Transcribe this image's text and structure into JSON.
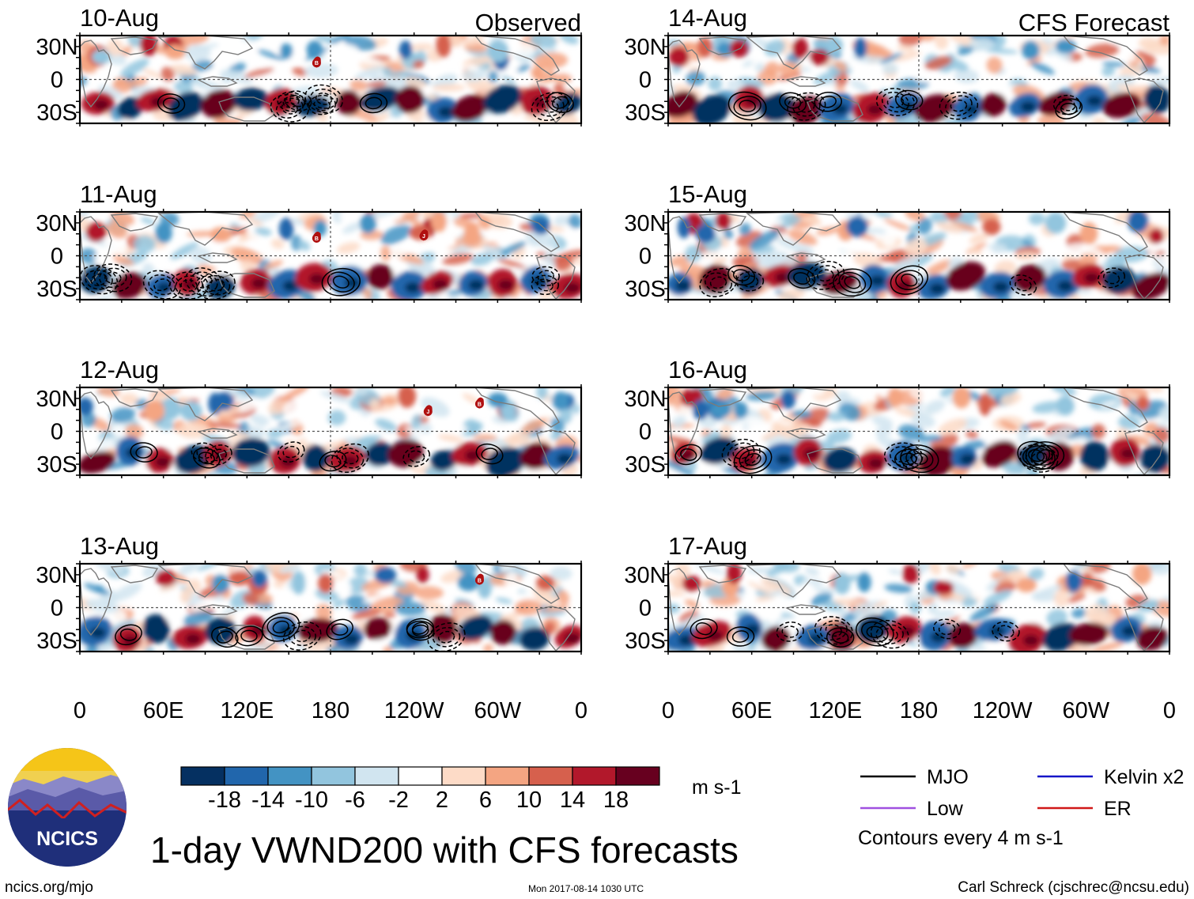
{
  "chart_data": {
    "type": "heatmap",
    "title": "1-day VWND200 with CFS forecasts",
    "units": "m s-1",
    "variable": "VWND200",
    "columns": [
      {
        "label": "Observed",
        "dates": [
          "10-Aug",
          "11-Aug",
          "12-Aug",
          "13-Aug"
        ]
      },
      {
        "label": "CFS Forecast",
        "dates": [
          "14-Aug",
          "15-Aug",
          "16-Aug",
          "17-Aug"
        ]
      }
    ],
    "x_ticks": [
      "0",
      "60E",
      "120E",
      "180",
      "120W",
      "60W",
      "0"
    ],
    "y_ticks": [
      "30N",
      "0",
      "30S"
    ],
    "xlim": [
      0,
      360
    ],
    "ylim": [
      -40,
      40
    ],
    "colorbar": {
      "colors": [
        "#053061",
        "#2166ac",
        "#4393c3",
        "#92c5de",
        "#d1e5f0",
        "#ffffff",
        "#fddbc7",
        "#f4a582",
        "#d6604d",
        "#b2182b",
        "#67001f"
      ],
      "labels": [
        "-18",
        "-14",
        "-10",
        "-6",
        "-2",
        "2",
        "6",
        "10",
        "14",
        "18"
      ],
      "units": "m s-1"
    },
    "contour_legend": [
      {
        "name": "MJO",
        "color": "#000000"
      },
      {
        "name": "Kelvin x2",
        "color": "#1515c8"
      },
      {
        "name": "Low",
        "color": "#a050e0"
      },
      {
        "name": "ER",
        "color": "#d01818"
      }
    ],
    "contour_note": "Contours every 4 m s-1",
    "storm_markers": [
      {
        "panel": "10-Aug",
        "label": "B",
        "lon": 170,
        "lat": 15
      },
      {
        "panel": "11-Aug",
        "label": "B",
        "lon": 170,
        "lat": 16
      },
      {
        "panel": "11-Aug",
        "label": "J",
        "lon": 247,
        "lat": 18
      },
      {
        "panel": "12-Aug",
        "label": "J",
        "lon": 250,
        "lat": 18
      },
      {
        "panel": "12-Aug",
        "label": "B",
        "lon": 287,
        "lat": 25
      },
      {
        "panel": "13-Aug",
        "label": "B",
        "lon": 287,
        "lat": 25
      }
    ]
  },
  "branding": {
    "logo_text": "NCICS",
    "url": "ncics.org/mjo",
    "timestamp": "Mon 2017-08-14 1030 UTC",
    "author": "Carl Schreck (cjschrec@ncsu.edu)"
  }
}
